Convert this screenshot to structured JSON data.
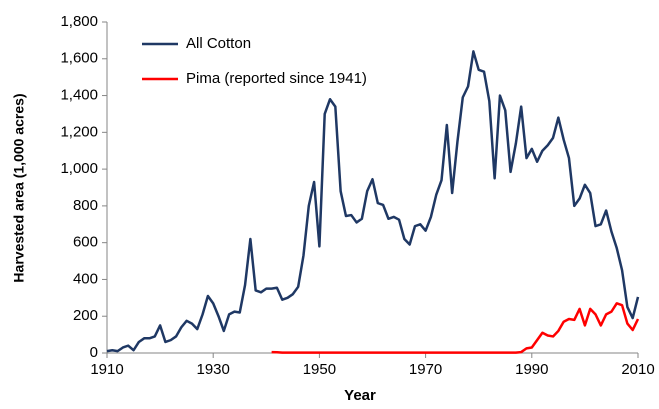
{
  "chart_data": {
    "type": "line",
    "x_label": "Year",
    "y_label": "Harvested area (1,000 acres)",
    "x": [
      1910,
      1911,
      1912,
      1913,
      1914,
      1915,
      1916,
      1917,
      1918,
      1919,
      1920,
      1921,
      1922,
      1923,
      1924,
      1925,
      1926,
      1927,
      1928,
      1929,
      1930,
      1931,
      1932,
      1933,
      1934,
      1935,
      1936,
      1937,
      1938,
      1939,
      1940,
      1941,
      1942,
      1943,
      1944,
      1945,
      1946,
      1947,
      1948,
      1949,
      1950,
      1951,
      1952,
      1953,
      1954,
      1955,
      1956,
      1957,
      1958,
      1959,
      1960,
      1961,
      1962,
      1963,
      1964,
      1965,
      1966,
      1967,
      1968,
      1969,
      1970,
      1971,
      1972,
      1973,
      1974,
      1975,
      1976,
      1977,
      1978,
      1979,
      1980,
      1981,
      1982,
      1983,
      1984,
      1985,
      1986,
      1987,
      1988,
      1989,
      1990,
      1991,
      1992,
      1993,
      1994,
      1995,
      1996,
      1997,
      1998,
      1999,
      2000,
      2001,
      2002,
      2003,
      2004,
      2005,
      2006,
      2007,
      2008,
      2009,
      2010
    ],
    "series": [
      {
        "name": "All Cotton",
        "color": "#1f3864",
        "values": [
          10,
          15,
          10,
          30,
          40,
          15,
          60,
          80,
          80,
          90,
          150,
          60,
          70,
          90,
          140,
          175,
          160,
          130,
          210,
          310,
          270,
          200,
          120,
          210,
          225,
          220,
          370,
          620,
          340,
          330,
          350,
          350,
          355,
          290,
          300,
          320,
          360,
          530,
          800,
          930,
          580,
          1300,
          1380,
          1340,
          880,
          745,
          750,
          710,
          730,
          880,
          945,
          815,
          805,
          730,
          740,
          725,
          620,
          590,
          690,
          700,
          665,
          740,
          860,
          940,
          1240,
          870,
          1150,
          1390,
          1450,
          1640,
          1540,
          1530,
          1370,
          950,
          1400,
          1320,
          985,
          1140,
          1340,
          1060,
          1110,
          1040,
          1100,
          1130,
          1170,
          1280,
          1160,
          1060,
          800,
          840,
          915,
          870,
          690,
          700,
          775,
          660,
          570,
          450,
          250,
          190,
          305
        ]
      },
      {
        "name": "Pima (reported since 1941)",
        "color": "#ff0000",
        "values": [
          null,
          null,
          null,
          null,
          null,
          null,
          null,
          null,
          null,
          null,
          null,
          null,
          null,
          null,
          null,
          null,
          null,
          null,
          null,
          null,
          null,
          null,
          null,
          null,
          null,
          null,
          null,
          null,
          null,
          null,
          null,
          5,
          4,
          2,
          2,
          2,
          2,
          2,
          2,
          2,
          2,
          2,
          2,
          2,
          2,
          2,
          2,
          2,
          2,
          2,
          2,
          2,
          2,
          2,
          2,
          2,
          2,
          2,
          2,
          2,
          2,
          2,
          2,
          2,
          2,
          2,
          2,
          2,
          2,
          2,
          2,
          2,
          2,
          2,
          2,
          2,
          2,
          2,
          5,
          25,
          30,
          70,
          110,
          95,
          90,
          120,
          170,
          185,
          180,
          240,
          150,
          240,
          210,
          150,
          210,
          225,
          270,
          260,
          160,
          125,
          185
        ]
      }
    ],
    "xlim": [
      1910,
      2010
    ],
    "xticks": [
      1910,
      1930,
      1950,
      1970,
      1990,
      2010
    ],
    "ylim": [
      0,
      1800
    ],
    "yticks": [
      0,
      200,
      400,
      600,
      800,
      {
        "value": 1000,
        "label": "1,000"
      },
      {
        "value": 1200,
        "label": "1,200"
      },
      {
        "value": 1400,
        "label": "1,400"
      },
      {
        "value": 1600,
        "label": "1,600"
      },
      {
        "value": 1800,
        "label": "1,800"
      }
    ],
    "grid": false,
    "legend": "upper left"
  }
}
